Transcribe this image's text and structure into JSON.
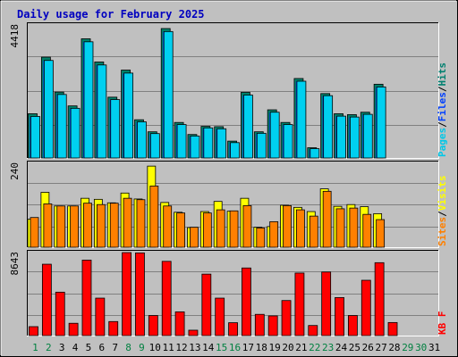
{
  "chart_data": {
    "type": "bar",
    "title": "Daily usage for February 2025",
    "days": [
      "1",
      "2",
      "3",
      "4",
      "5",
      "6",
      "7",
      "8",
      "9",
      "10",
      "11",
      "12",
      "13",
      "14",
      "15",
      "16",
      "17",
      "18",
      "19",
      "20",
      "21",
      "22",
      "23",
      "24",
      "25",
      "26",
      "27",
      "28",
      "29",
      "30",
      "31"
    ],
    "weekend_days": [
      1,
      2,
      8,
      9,
      15,
      16,
      22,
      23,
      29,
      30
    ],
    "panels": [
      {
        "name": "requests",
        "ymax": 4418,
        "ymax_label": "4418",
        "right_labels": [
          "Pages",
          "/",
          "Files",
          "/",
          "Hits"
        ],
        "right_colors": [
          "#00c8e8",
          "#000000",
          "#0040ff",
          "#000000",
          "#008070"
        ],
        "series": [
          {
            "name": "Hits",
            "color": "#00806a",
            "values": [
              1470,
              3350,
              2190,
              1730,
              3960,
              3190,
              2020,
              2920,
              1270,
              870,
              4300,
              1180,
              780,
              1050,
              1040,
              560,
              2180,
              870,
              1600,
              1180,
              2640,
              340,
              2140,
              1470,
              1440,
              1520,
              2450,
              0,
              0,
              0,
              0
            ]
          },
          {
            "name": "Files",
            "color": "#0040ff",
            "values": [
              1420,
              3290,
              2150,
              1690,
              3920,
              3140,
              1990,
              2870,
              1240,
              840,
              4250,
              1150,
              760,
              1030,
              1010,
              540,
              2130,
              850,
              1560,
              1150,
              2600,
              320,
              2110,
              1440,
              1410,
              1490,
              2410,
              0,
              0,
              0,
              0
            ]
          },
          {
            "name": "Pages",
            "color": "#00d0f0",
            "values": [
              1380,
              3240,
              2110,
              1650,
              3860,
              3090,
              1940,
              2820,
              1200,
              810,
              4200,
              1110,
              730,
              1000,
              970,
              510,
              2090,
              820,
              1520,
              1110,
              2550,
              310,
              2070,
              1390,
              1360,
              1450,
              2360,
              0,
              0,
              0,
              0
            ]
          }
        ]
      },
      {
        "name": "visitors",
        "ymax": 240,
        "ymax_label": "240",
        "right_labels": [
          "Sites",
          "/",
          "Visits"
        ],
        "right_colors": [
          "#ff8000",
          "#000000",
          "#ffff00"
        ],
        "series": [
          {
            "name": "Visits",
            "color": "#ffff00",
            "values": [
              80,
              157,
              118,
              118,
              140,
              137,
              127,
              155,
              138,
              232,
              128,
              100,
              56,
              102,
              131,
              103,
              140,
              57,
              59,
              120,
              114,
              102,
              167,
              117,
              122,
              116,
              96,
              0,
              0,
              0,
              0
            ]
          },
          {
            "name": "Sites",
            "color": "#ff8000",
            "values": [
              85,
              124,
              118,
              118,
              126,
              122,
              126,
              140,
              136,
              175,
              118,
              98,
              57,
              98,
              107,
              104,
              119,
              55,
              73,
              119,
              107,
              89,
              160,
              110,
              112,
              94,
              79,
              0,
              0,
              0,
              0
            ]
          }
        ]
      },
      {
        "name": "kbytes",
        "ymax": 8643,
        "ymax_label": "8643",
        "right_labels": [
          "KB",
          " ",
          "F"
        ],
        "right_colors": [
          "#ff0000",
          "#ff0000",
          "#ff0000"
        ],
        "series": [
          {
            "name": "KB F",
            "color": "#ff0000",
            "values": [
              930,
              7430,
              4520,
              1280,
              7860,
              3900,
              1460,
              8640,
              8610,
              2090,
              7730,
              2470,
              560,
              6400,
              3900,
              1340,
              7040,
              2210,
              2050,
              3650,
              6510,
              1050,
              6620,
              3960,
              2090,
              5760,
              7590,
              1360,
              0,
              0,
              0
            ]
          }
        ]
      }
    ]
  }
}
